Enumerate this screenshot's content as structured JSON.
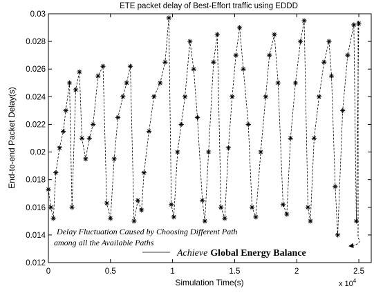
{
  "chart_data": {
    "type": "scatter",
    "title": "ETE packet delay of Best-Effort traffic using EDDD",
    "xlabel": "Simulation Time(s)",
    "ylabel": "End-to-end Packet Delay(s)",
    "x_multiplier_label": "x 10",
    "x_multiplier_exponent": "4",
    "xlim": [
      0,
      26000
    ],
    "ylim": [
      0.012,
      0.03
    ],
    "xticks": [
      0,
      5000,
      10000,
      15000,
      20000,
      25000
    ],
    "xtick_labels": [
      "0",
      "0.5",
      "1",
      "1.5",
      "2",
      "2.5"
    ],
    "yticks": [
      0.012,
      0.014,
      0.016,
      0.018,
      0.02,
      0.022,
      0.024,
      0.026,
      0.028,
      0.03
    ],
    "ytick_labels": [
      "0.012",
      "0.014",
      "0.016",
      "0.018",
      "0.02",
      "0.022",
      "0.024",
      "0.026",
      "0.028",
      "0.03"
    ],
    "marker": "asterisk",
    "line_style": "dashed",
    "grid": false,
    "series_color": "#000000",
    "annotations": {
      "fluctuation_line1": "Delay Fluctuation Caused by Choosing Different Path",
      "fluctuation_line2": "among all the Available Paths",
      "balance_prefix": "Achieve",
      "balance_main": "Global Energy Balance"
    },
    "series": [
      {
        "points": [
          [
            0,
            0.0173
          ],
          [
            200,
            0.016
          ],
          [
            400,
            0.0152
          ],
          [
            600,
            0.0185
          ],
          [
            900,
            0.0203
          ],
          [
            1200,
            0.0215
          ],
          [
            1400,
            0.023
          ],
          [
            1700,
            0.025
          ],
          [
            1900,
            0.016
          ],
          [
            2200,
            0.0245
          ],
          [
            2500,
            0.0258
          ],
          [
            2700,
            0.021
          ],
          [
            3000,
            0.0195
          ],
          [
            3300,
            0.021
          ],
          [
            3600,
            0.022
          ],
          [
            4000,
            0.0255
          ],
          [
            4400,
            0.0262
          ],
          [
            4700,
            0.0163
          ],
          [
            5000,
            0.0152
          ],
          [
            5300,
            0.0195
          ],
          [
            5600,
            0.0225
          ],
          [
            6000,
            0.024
          ],
          [
            6300,
            0.025
          ],
          [
            6600,
            0.0262
          ],
          [
            6900,
            0.015
          ],
          [
            7200,
            0.0165
          ],
          [
            7500,
            0.0158
          ],
          [
            7700,
            0.0185
          ],
          [
            8100,
            0.0215
          ],
          [
            8500,
            0.024
          ],
          [
            9000,
            0.025
          ],
          [
            9400,
            0.0265
          ],
          [
            9700,
            0.0297
          ],
          [
            9900,
            0.0162
          ],
          [
            10100,
            0.0153
          ],
          [
            10400,
            0.02
          ],
          [
            10700,
            0.022
          ],
          [
            11000,
            0.024
          ],
          [
            11400,
            0.028
          ],
          [
            11700,
            0.026
          ],
          [
            12000,
            0.0225
          ],
          [
            12400,
            0.0165
          ],
          [
            12600,
            0.015
          ],
          [
            12900,
            0.02
          ],
          [
            13300,
            0.0265
          ],
          [
            13600,
            0.0285
          ],
          [
            13900,
            0.016
          ],
          [
            14200,
            0.0152
          ],
          [
            14500,
            0.0203
          ],
          [
            14800,
            0.024
          ],
          [
            15100,
            0.027
          ],
          [
            15400,
            0.029
          ],
          [
            15700,
            0.026
          ],
          [
            16100,
            0.022
          ],
          [
            16400,
            0.016
          ],
          [
            16700,
            0.0153
          ],
          [
            17100,
            0.02
          ],
          [
            17500,
            0.024
          ],
          [
            17800,
            0.027
          ],
          [
            18200,
            0.0285
          ],
          [
            18500,
            0.025
          ],
          [
            18900,
            0.0162
          ],
          [
            19200,
            0.0155
          ],
          [
            19500,
            0.021
          ],
          [
            19900,
            0.025
          ],
          [
            20300,
            0.028
          ],
          [
            20600,
            0.0295
          ],
          [
            20900,
            0.016
          ],
          [
            21100,
            0.015
          ],
          [
            21400,
            0.021
          ],
          [
            21800,
            0.024
          ],
          [
            22200,
            0.0265
          ],
          [
            22600,
            0.028
          ],
          [
            22800,
            0.0255
          ],
          [
            23100,
            0.0175
          ],
          [
            23300,
            0.014
          ],
          [
            23700,
            0.023
          ],
          [
            24100,
            0.027
          ],
          [
            24600,
            0.0292
          ],
          [
            24800,
            0.015
          ],
          [
            25000,
            0.0293
          ]
        ]
      }
    ]
  }
}
